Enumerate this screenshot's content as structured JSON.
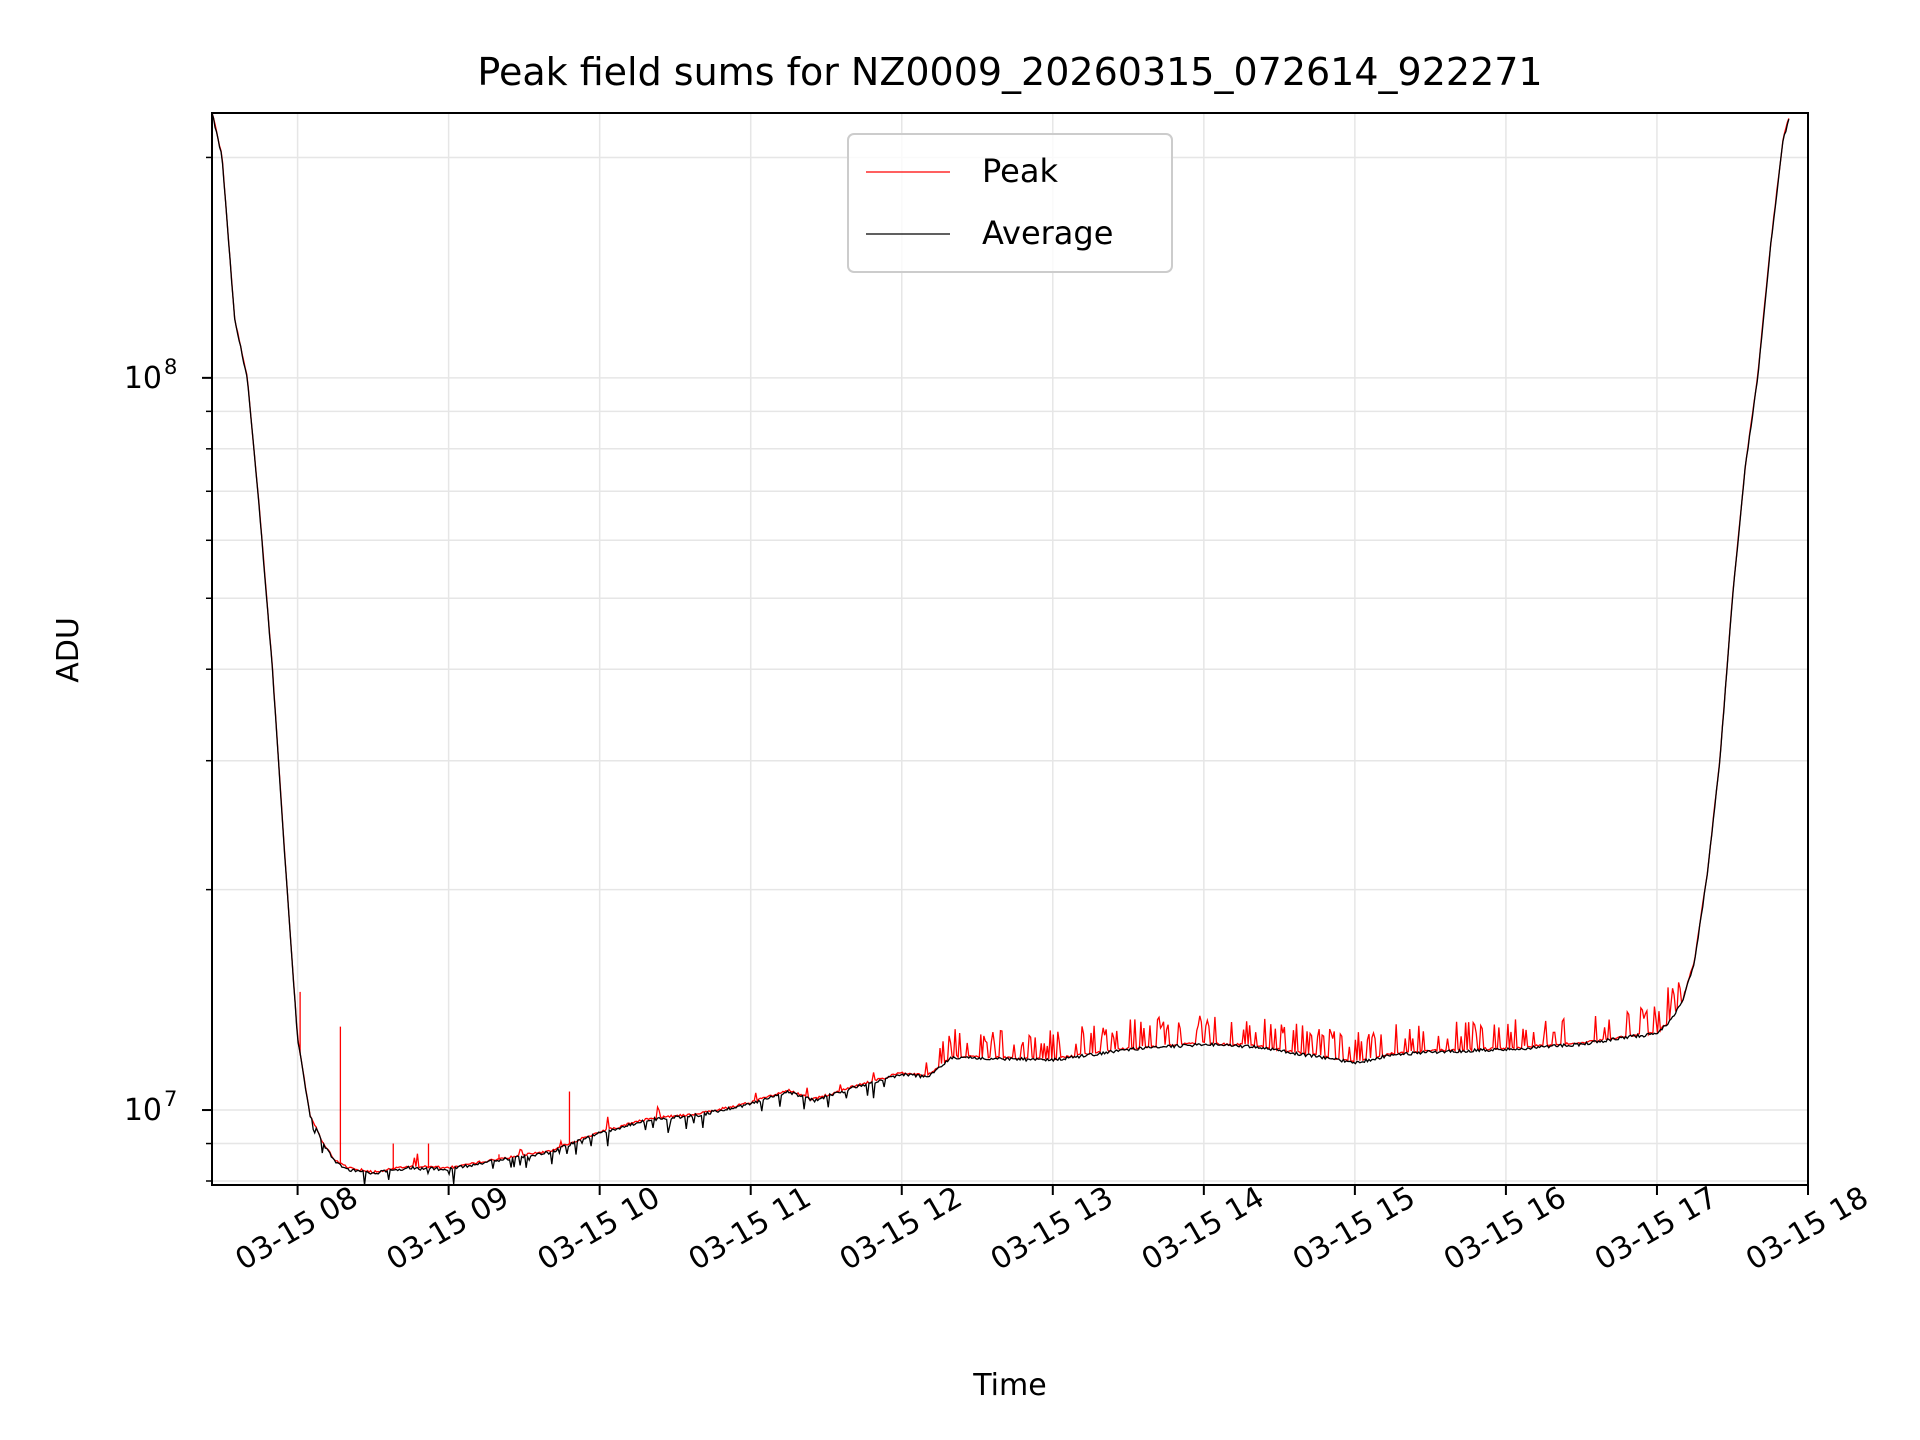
{
  "chart_data": {
    "type": "line",
    "title": "Peak field sums for NZ0009_20260315_072614_922271",
    "xlabel": "Time",
    "ylabel": "ADU",
    "y_scale": "log",
    "xlim": [
      "03-15 07:26",
      "03-15 18:00"
    ],
    "ylim": [
      7900000,
      230000000
    ],
    "x_ticks": [
      "03-15 08",
      "03-15 09",
      "03-15 10",
      "03-15 11",
      "03-15 12",
      "03-15 13",
      "03-15 14",
      "03-15 15",
      "03-15 16",
      "03-15 17",
      "03-15 18"
    ],
    "y_major_ticks": [
      {
        "value": 10000000,
        "base": "10",
        "exp": "7"
      },
      {
        "value": 100000000,
        "base": "10",
        "exp": "8"
      }
    ],
    "grid": true,
    "legend_position": "top-center",
    "series": [
      {
        "name": "Peak",
        "color": "#ff0000",
        "style": "thin line with frequent upward spikes above Average",
        "spike_regions": [
          {
            "x_range": [
              "03-15 08:00",
              "03-15 08:20"
            ],
            "max_y": 14500000
          },
          {
            "x_range": [
              "03-15 12:15",
              "03-15 16:55"
            ],
            "max_y": 13300000
          },
          {
            "x_range": [
              "03-15 16:55",
              "03-15 17:15"
            ],
            "max_y": 16000000
          }
        ]
      },
      {
        "name": "Average",
        "color": "#000000",
        "points": [
          [
            "03-15 07:26",
            230000000
          ],
          [
            "03-15 07:30",
            200000000
          ],
          [
            "03-15 07:35",
            120000000
          ],
          [
            "03-15 07:40",
            100000000
          ],
          [
            "03-15 07:45",
            65000000
          ],
          [
            "03-15 07:50",
            40000000
          ],
          [
            "03-15 07:55",
            22000000
          ],
          [
            "03-15 08:00",
            12500000
          ],
          [
            "03-15 08:05",
            9800000
          ],
          [
            "03-15 08:10",
            9000000
          ],
          [
            "03-15 08:15",
            8500000
          ],
          [
            "03-15 08:20",
            8300000
          ],
          [
            "03-15 08:30",
            8200000
          ],
          [
            "03-15 08:45",
            8350000
          ],
          [
            "03-15 09:00",
            8300000
          ],
          [
            "03-15 09:20",
            8550000
          ],
          [
            "03-15 09:40",
            8750000
          ],
          [
            "03-15 10:00",
            9300000
          ],
          [
            "03-15 10:20",
            9700000
          ],
          [
            "03-15 10:40",
            9850000
          ],
          [
            "03-15 11:00",
            10200000
          ],
          [
            "03-15 11:15",
            10600000
          ],
          [
            "03-15 11:25",
            10300000
          ],
          [
            "03-15 11:40",
            10700000
          ],
          [
            "03-15 12:00",
            11200000
          ],
          [
            "03-15 12:10",
            11100000
          ],
          [
            "03-15 12:20",
            11800000
          ],
          [
            "03-15 13:00",
            11700000
          ],
          [
            "03-15 13:30",
            12100000
          ],
          [
            "03-15 14:00",
            12300000
          ],
          [
            "03-15 14:20",
            12200000
          ],
          [
            "03-15 14:40",
            11900000
          ],
          [
            "03-15 15:00",
            11600000
          ],
          [
            "03-15 15:15",
            11900000
          ],
          [
            "03-15 15:30",
            12000000
          ],
          [
            "03-15 16:00",
            12100000
          ],
          [
            "03-15 16:30",
            12300000
          ],
          [
            "03-15 16:50",
            12600000
          ],
          [
            "03-15 17:00",
            12700000
          ],
          [
            "03-15 17:05",
            13200000
          ],
          [
            "03-15 17:10",
            14000000
          ],
          [
            "03-15 17:15",
            16000000
          ],
          [
            "03-15 17:20",
            21000000
          ],
          [
            "03-15 17:25",
            30000000
          ],
          [
            "03-15 17:30",
            50000000
          ],
          [
            "03-15 17:35",
            75000000
          ],
          [
            "03-15 17:40",
            100000000
          ],
          [
            "03-15 17:45",
            150000000
          ],
          [
            "03-15 17:50",
            210000000
          ],
          [
            "03-15 17:53",
            230000000
          ]
        ]
      }
    ]
  }
}
